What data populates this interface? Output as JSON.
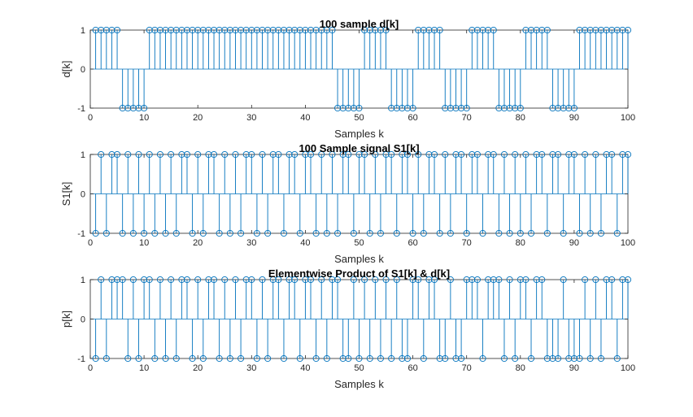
{
  "chart_data": [
    {
      "type": "stem",
      "title": "100 sample d[k]",
      "xlabel": "Samples k",
      "ylabel": "d[k]",
      "xlim": [
        0,
        100
      ],
      "ylim": [
        -1,
        1
      ],
      "xticks": [
        0,
        10,
        20,
        30,
        40,
        50,
        60,
        70,
        80,
        90,
        100
      ],
      "yticks": [
        -1,
        0,
        1
      ],
      "x": [
        1,
        2,
        3,
        4,
        5,
        6,
        7,
        8,
        9,
        10,
        11,
        12,
        13,
        14,
        15,
        16,
        17,
        18,
        19,
        20,
        21,
        22,
        23,
        24,
        25,
        26,
        27,
        28,
        29,
        30,
        31,
        32,
        33,
        34,
        35,
        36,
        37,
        38,
        39,
        40,
        41,
        42,
        43,
        44,
        45,
        46,
        47,
        48,
        49,
        50,
        51,
        52,
        53,
        54,
        55,
        56,
        57,
        58,
        59,
        60,
        61,
        62,
        63,
        64,
        65,
        66,
        67,
        68,
        69,
        70,
        71,
        72,
        73,
        74,
        75,
        76,
        77,
        78,
        79,
        80,
        81,
        82,
        83,
        84,
        85,
        86,
        87,
        88,
        89,
        90,
        91,
        92,
        93,
        94,
        95,
        96,
        97,
        98,
        99,
        100
      ],
      "y": [
        1,
        1,
        1,
        1,
        1,
        -1,
        -1,
        -1,
        -1,
        -1,
        1,
        1,
        1,
        1,
        1,
        1,
        1,
        1,
        1,
        1,
        1,
        1,
        1,
        1,
        1,
        1,
        1,
        1,
        1,
        1,
        1,
        1,
        1,
        1,
        1,
        1,
        1,
        1,
        1,
        1,
        1,
        1,
        1,
        1,
        1,
        -1,
        -1,
        -1,
        -1,
        -1,
        1,
        1,
        1,
        1,
        1,
        -1,
        -1,
        -1,
        -1,
        -1,
        1,
        1,
        1,
        1,
        1,
        -1,
        -1,
        -1,
        -1,
        -1,
        1,
        1,
        1,
        1,
        1,
        -1,
        -1,
        -1,
        -1,
        -1,
        1,
        1,
        1,
        1,
        1,
        -1,
        -1,
        -1,
        -1,
        -1,
        1,
        1,
        1,
        1,
        1,
        1,
        1,
        1,
        1,
        1
      ],
      "grid": false
    },
    {
      "type": "stem",
      "title": "100 Sample signal S1[k]",
      "xlabel": "Samples k",
      "ylabel": "S1[k]",
      "xlim": [
        0,
        100
      ],
      "ylim": [
        -1,
        1
      ],
      "xticks": [
        0,
        10,
        20,
        30,
        40,
        50,
        60,
        70,
        80,
        90,
        100
      ],
      "yticks": [
        -1,
        0,
        1
      ],
      "x": [
        1,
        2,
        3,
        4,
        5,
        6,
        7,
        8,
        9,
        10,
        11,
        12,
        13,
        14,
        15,
        16,
        17,
        18,
        19,
        20,
        21,
        22,
        23,
        24,
        25,
        26,
        27,
        28,
        29,
        30,
        31,
        32,
        33,
        34,
        35,
        36,
        37,
        38,
        39,
        40,
        41,
        42,
        43,
        44,
        45,
        46,
        47,
        48,
        49,
        50,
        51,
        52,
        53,
        54,
        55,
        56,
        57,
        58,
        59,
        60,
        61,
        62,
        63,
        64,
        65,
        66,
        67,
        68,
        69,
        70,
        71,
        72,
        73,
        74,
        75,
        76,
        77,
        78,
        79,
        80,
        81,
        82,
        83,
        84,
        85,
        86,
        87,
        88,
        89,
        90,
        91,
        92,
        93,
        94,
        95,
        96,
        97,
        98,
        99,
        100
      ],
      "y": [
        -1,
        1,
        -1,
        1,
        1,
        -1,
        1,
        -1,
        1,
        -1,
        1,
        -1,
        1,
        -1,
        1,
        -1,
        1,
        1,
        -1,
        1,
        -1,
        1,
        1,
        -1,
        1,
        -1,
        1,
        -1,
        1,
        1,
        -1,
        1,
        -1,
        1,
        1,
        -1,
        1,
        1,
        -1,
        1,
        1,
        -1,
        1,
        -1,
        1,
        -1,
        1,
        1,
        -1,
        1,
        1,
        -1,
        1,
        -1,
        1,
        1,
        -1,
        1,
        1,
        -1,
        1,
        -1,
        1,
        1,
        -1,
        1,
        -1,
        1,
        1,
        -1,
        1,
        1,
        -1,
        1,
        1,
        -1,
        1,
        -1,
        1,
        -1,
        1,
        -1,
        1,
        1,
        -1,
        1,
        1,
        -1,
        1,
        1,
        -1,
        1,
        -1,
        1,
        -1,
        1,
        1,
        -1,
        1,
        1
      ],
      "grid": false
    },
    {
      "type": "stem",
      "title": "Elementwise Product of S1[k] & d[k]",
      "xlabel": "Samples k",
      "ylabel": "p[k]",
      "xlim": [
        0,
        100
      ],
      "ylim": [
        -1,
        1
      ],
      "xticks": [
        0,
        10,
        20,
        30,
        40,
        50,
        60,
        70,
        80,
        90,
        100
      ],
      "yticks": [
        -1,
        0,
        1
      ],
      "x": [
        1,
        2,
        3,
        4,
        5,
        6,
        7,
        8,
        9,
        10,
        11,
        12,
        13,
        14,
        15,
        16,
        17,
        18,
        19,
        20,
        21,
        22,
        23,
        24,
        25,
        26,
        27,
        28,
        29,
        30,
        31,
        32,
        33,
        34,
        35,
        36,
        37,
        38,
        39,
        40,
        41,
        42,
        43,
        44,
        45,
        46,
        47,
        48,
        49,
        50,
        51,
        52,
        53,
        54,
        55,
        56,
        57,
        58,
        59,
        60,
        61,
        62,
        63,
        64,
        65,
        66,
        67,
        68,
        69,
        70,
        71,
        72,
        73,
        74,
        75,
        76,
        77,
        78,
        79,
        80,
        81,
        82,
        83,
        84,
        85,
        86,
        87,
        88,
        89,
        90,
        91,
        92,
        93,
        94,
        95,
        96,
        97,
        98,
        99,
        100
      ],
      "y": [
        -1,
        1,
        -1,
        1,
        1,
        1,
        -1,
        1,
        -1,
        1,
        1,
        -1,
        1,
        -1,
        1,
        -1,
        1,
        1,
        -1,
        1,
        -1,
        1,
        1,
        -1,
        1,
        -1,
        1,
        -1,
        1,
        1,
        -1,
        1,
        -1,
        1,
        1,
        -1,
        1,
        1,
        -1,
        1,
        1,
        -1,
        1,
        -1,
        1,
        1,
        -1,
        -1,
        1,
        -1,
        1,
        -1,
        1,
        -1,
        1,
        -1,
        1,
        -1,
        -1,
        1,
        1,
        -1,
        1,
        1,
        -1,
        -1,
        1,
        -1,
        -1,
        1,
        1,
        1,
        -1,
        1,
        1,
        1,
        -1,
        1,
        -1,
        1,
        1,
        -1,
        1,
        1,
        -1,
        -1,
        -1,
        1,
        -1,
        -1,
        -1,
        1,
        -1,
        1,
        -1,
        1,
        1,
        -1,
        1,
        1
      ],
      "grid": false
    }
  ],
  "colors": {
    "stem": "#0072BD",
    "axes": "#262626",
    "background": "#ffffff"
  }
}
